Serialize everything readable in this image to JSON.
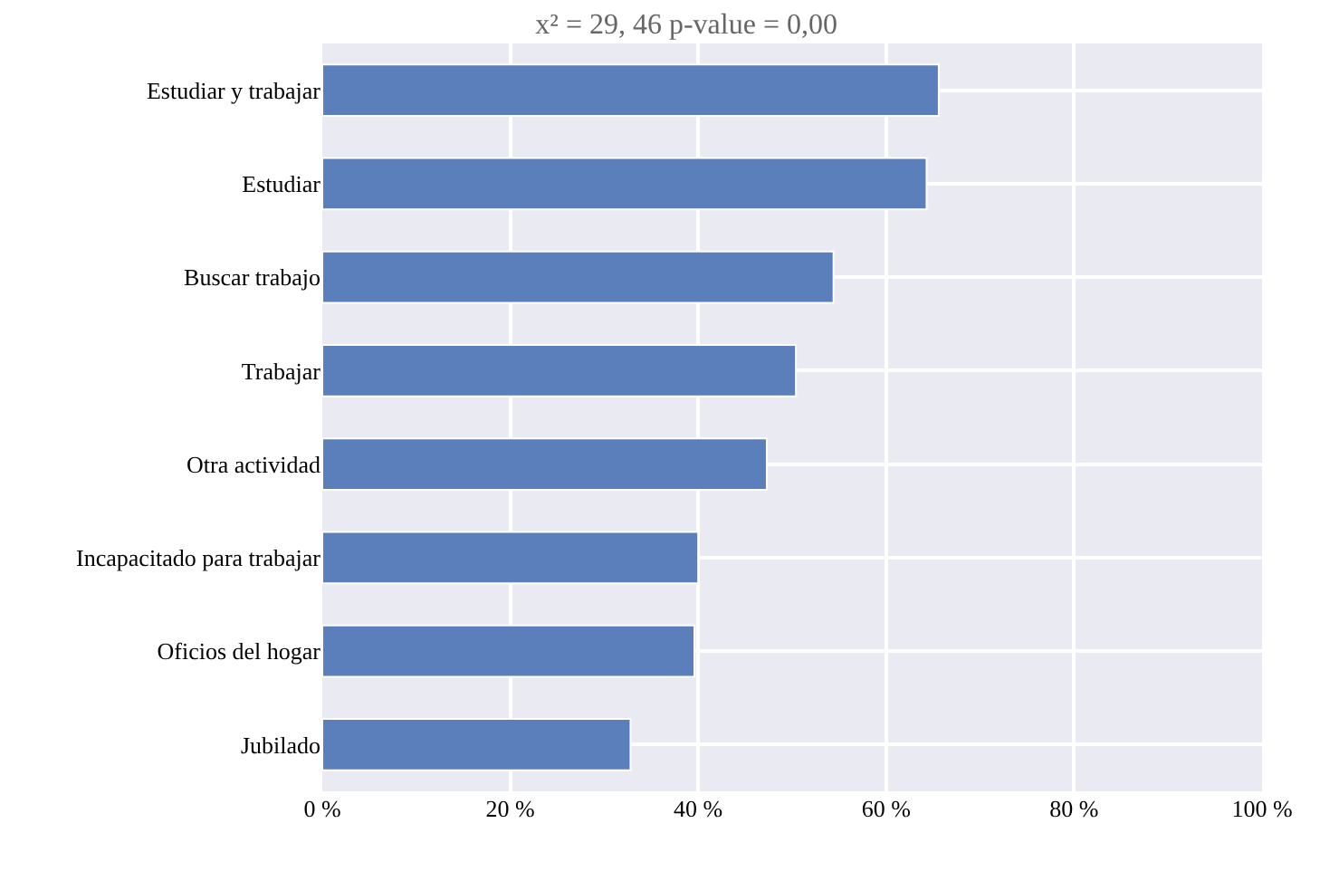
{
  "chart_data": {
    "type": "bar",
    "orientation": "horizontal",
    "title": "x² = 29, 46 p-value = 0,00",
    "categories": [
      "Estudiar y trabajar",
      "Estudiar",
      "Buscar trabajo",
      "Trabajar",
      "Otra actividad",
      "Incapacitado para trabajar",
      "Oficios del hogar",
      "Jubilado"
    ],
    "values": [
      65.6,
      64.3,
      54.4,
      50.4,
      47.3,
      40.0,
      39.6,
      32.8
    ],
    "color": "#5b7fbb",
    "xlim": [
      0,
      100
    ],
    "xticks": [
      {
        "value": 0,
        "label": "0 %"
      },
      {
        "value": 20,
        "label": "20 %"
      },
      {
        "value": 40,
        "label": "40 %"
      },
      {
        "value": 60,
        "label": "60 %"
      },
      {
        "value": 80,
        "label": "80 %"
      },
      {
        "value": 100,
        "label": "100 %"
      }
    ],
    "grid": true,
    "legend": false
  }
}
